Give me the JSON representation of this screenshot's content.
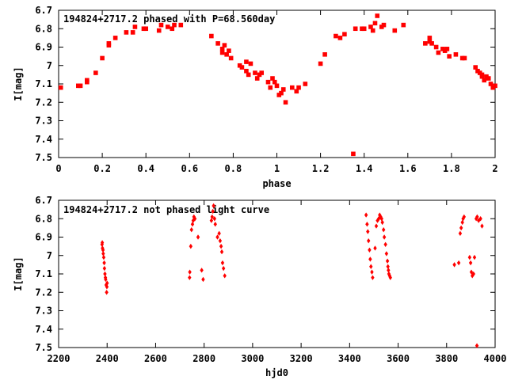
{
  "chart_data": [
    {
      "type": "scatter",
      "title": "194824+2717.2 phased with P=68.560day",
      "xlabel": "phase",
      "ylabel": "I[mag]",
      "xlim": [
        0,
        2
      ],
      "ylim": [
        6.7,
        7.5
      ],
      "y_inverted": true,
      "grid": false,
      "marker_color": "#ff0000",
      "marker": "filled-square",
      "x_ticks": [
        "0",
        "0.2",
        "0.4",
        "0.6",
        "0.8",
        "1",
        "1.2",
        "1.4",
        "1.6",
        "1.8",
        "2"
      ],
      "y_ticks": [
        "6.7",
        "6.8",
        "6.9",
        "7",
        "7.1",
        "7.2",
        "7.3",
        "7.4",
        "7.5"
      ],
      "points": [
        [
          0.01,
          7.12
        ],
        [
          0.09,
          7.11
        ],
        [
          0.1,
          7.11
        ],
        [
          0.13,
          7.09
        ],
        [
          0.13,
          7.08
        ],
        [
          0.17,
          7.04
        ],
        [
          0.2,
          6.96
        ],
        [
          0.23,
          6.89
        ],
        [
          0.23,
          6.88
        ],
        [
          0.26,
          6.85
        ],
        [
          0.31,
          6.82
        ],
        [
          0.34,
          6.82
        ],
        [
          0.35,
          6.79
        ],
        [
          0.39,
          6.8
        ],
        [
          0.4,
          6.8
        ],
        [
          0.46,
          6.81
        ],
        [
          0.47,
          6.78
        ],
        [
          0.5,
          6.79
        ],
        [
          0.52,
          6.8
        ],
        [
          0.53,
          6.78
        ],
        [
          0.56,
          6.78
        ],
        [
          0.7,
          6.84
        ],
        [
          0.73,
          6.88
        ],
        [
          0.75,
          6.93
        ],
        [
          0.75,
          6.91
        ],
        [
          0.76,
          6.89
        ],
        [
          0.77,
          6.94
        ],
        [
          0.78,
          6.92
        ],
        [
          0.79,
          6.96
        ],
        [
          0.83,
          7.0
        ],
        [
          0.84,
          7.01
        ],
        [
          0.86,
          6.98
        ],
        [
          0.86,
          7.03
        ],
        [
          0.87,
          7.05
        ],
        [
          0.88,
          6.99
        ],
        [
          0.9,
          7.04
        ],
        [
          0.91,
          7.07
        ],
        [
          0.92,
          7.05
        ],
        [
          0.93,
          7.04
        ],
        [
          0.96,
          7.09
        ],
        [
          0.97,
          7.12
        ],
        [
          0.98,
          7.07
        ],
        [
          0.99,
          7.09
        ],
        [
          1.0,
          7.11
        ],
        [
          1.01,
          7.16
        ],
        [
          1.02,
          7.15
        ],
        [
          1.03,
          7.13
        ],
        [
          1.04,
          7.2
        ],
        [
          1.07,
          7.12
        ],
        [
          1.09,
          7.14
        ],
        [
          1.1,
          7.12
        ],
        [
          1.13,
          7.1
        ],
        [
          1.2,
          6.99
        ],
        [
          1.22,
          6.94
        ],
        [
          1.27,
          6.84
        ],
        [
          1.29,
          6.85
        ],
        [
          1.31,
          6.83
        ],
        [
          1.35,
          7.48
        ],
        [
          1.36,
          6.8
        ],
        [
          1.39,
          6.8
        ],
        [
          1.4,
          6.8
        ],
        [
          1.43,
          6.79
        ],
        [
          1.44,
          6.81
        ],
        [
          1.45,
          6.77
        ],
        [
          1.46,
          6.73
        ],
        [
          1.48,
          6.79
        ],
        [
          1.49,
          6.78
        ],
        [
          1.54,
          6.81
        ],
        [
          1.58,
          6.78
        ],
        [
          1.68,
          6.88
        ],
        [
          1.7,
          6.87
        ],
        [
          1.7,
          6.85
        ],
        [
          1.71,
          6.88
        ],
        [
          1.73,
          6.9
        ],
        [
          1.74,
          6.93
        ],
        [
          1.76,
          6.91
        ],
        [
          1.77,
          6.92
        ],
        [
          1.78,
          6.91
        ],
        [
          1.79,
          6.95
        ],
        [
          1.82,
          6.94
        ],
        [
          1.85,
          6.96
        ],
        [
          1.86,
          6.96
        ],
        [
          1.91,
          7.01
        ],
        [
          1.92,
          7.03
        ],
        [
          1.93,
          7.04
        ],
        [
          1.94,
          7.06
        ],
        [
          1.94,
          7.05
        ],
        [
          1.95,
          7.08
        ],
        [
          1.96,
          7.06
        ],
        [
          1.97,
          7.07
        ],
        [
          1.98,
          7.1
        ],
        [
          1.99,
          7.12
        ],
        [
          2.0,
          7.11
        ]
      ]
    },
    {
      "type": "scatter",
      "title": "194824+2717.2 not phased light curve",
      "xlabel": "hjd0",
      "ylabel": "I[mag]",
      "xlim": [
        2200,
        4000
      ],
      "ylim": [
        6.7,
        7.5
      ],
      "y_inverted": true,
      "grid": false,
      "marker_color": "#ff0000",
      "marker": "filled-diamond",
      "x_ticks": [
        "2200",
        "2400",
        "2600",
        "2800",
        "3000",
        "3200",
        "3400",
        "3600",
        "3800",
        "4000"
      ],
      "y_ticks": [
        "6.7",
        "6.8",
        "6.9",
        "7",
        "7.1",
        "7.2",
        "7.3",
        "7.4",
        "7.5"
      ],
      "points": [
        [
          2379,
          6.94
        ],
        [
          2380,
          6.93
        ],
        [
          2381,
          6.96
        ],
        [
          2383,
          6.97
        ],
        [
          2384,
          6.99
        ],
        [
          2386,
          7.01
        ],
        [
          2388,
          7.04
        ],
        [
          2389,
          7.07
        ],
        [
          2391,
          7.1
        ],
        [
          2393,
          7.12
        ],
        [
          2394,
          7.13
        ],
        [
          2396,
          7.16
        ],
        [
          2398,
          7.2
        ],
        [
          2399,
          7.17
        ],
        [
          2400,
          7.15
        ],
        [
          2740,
          7.12
        ],
        [
          2741,
          7.09
        ],
        [
          2745,
          6.95
        ],
        [
          2748,
          6.86
        ],
        [
          2752,
          6.83
        ],
        [
          2755,
          6.81
        ],
        [
          2758,
          6.79
        ],
        [
          2762,
          6.8
        ],
        [
          2775,
          6.9
        ],
        [
          2790,
          7.08
        ],
        [
          2796,
          7.13
        ],
        [
          2830,
          6.81
        ],
        [
          2833,
          6.79
        ],
        [
          2836,
          6.76
        ],
        [
          2839,
          6.73
        ],
        [
          2843,
          6.8
        ],
        [
          2846,
          6.83
        ],
        [
          2855,
          6.9
        ],
        [
          2862,
          6.88
        ],
        [
          2866,
          6.92
        ],
        [
          2870,
          6.95
        ],
        [
          2873,
          6.98
        ],
        [
          2876,
          7.04
        ],
        [
          2880,
          7.07
        ],
        [
          2885,
          7.11
        ],
        [
          3468,
          6.78
        ],
        [
          3472,
          6.83
        ],
        [
          3475,
          6.87
        ],
        [
          3478,
          6.92
        ],
        [
          3482,
          6.97
        ],
        [
          3485,
          7.02
        ],
        [
          3488,
          7.06
        ],
        [
          3492,
          7.09
        ],
        [
          3495,
          7.12
        ],
        [
          3505,
          6.96
        ],
        [
          3510,
          6.84
        ],
        [
          3515,
          6.81
        ],
        [
          3520,
          6.8
        ],
        [
          3524,
          6.78
        ],
        [
          3528,
          6.79
        ],
        [
          3532,
          6.8
        ],
        [
          3535,
          6.82
        ],
        [
          3540,
          6.86
        ],
        [
          3543,
          6.9
        ],
        [
          3548,
          6.94
        ],
        [
          3552,
          6.99
        ],
        [
          3556,
          7.03
        ],
        [
          3558,
          7.06
        ],
        [
          3560,
          7.08
        ],
        [
          3562,
          7.1
        ],
        [
          3565,
          7.11
        ],
        [
          3568,
          7.12
        ],
        [
          3832,
          7.05
        ],
        [
          3850,
          7.04
        ],
        [
          3856,
          6.88
        ],
        [
          3860,
          6.85
        ],
        [
          3865,
          6.82
        ],
        [
          3868,
          6.8
        ],
        [
          3872,
          6.79
        ],
        [
          3895,
          7.01
        ],
        [
          3899,
          7.04
        ],
        [
          3902,
          7.09
        ],
        [
          3906,
          7.11
        ],
        [
          3911,
          7.1
        ],
        [
          3915,
          7.01
        ],
        [
          3922,
          6.8
        ],
        [
          3926,
          6.79
        ],
        [
          3932,
          6.81
        ],
        [
          3940,
          6.8
        ],
        [
          3946,
          6.84
        ],
        [
          3925,
          7.49
        ]
      ]
    }
  ]
}
